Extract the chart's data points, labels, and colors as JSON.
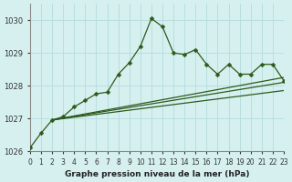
{
  "title": "Graphe pression niveau de la mer (hPa)",
  "bg_color": "#d6f0f0",
  "grid_color": "#b8dede",
  "line_color": "#2d5a1b",
  "xlim": [
    0,
    23
  ],
  "ylim": [
    1026,
    1030.5
  ],
  "yticks": [
    1026,
    1027,
    1028,
    1029,
    1030
  ],
  "xtick_labels": [
    "0",
    "1",
    "2",
    "3",
    "4",
    "5",
    "6",
    "7",
    "8",
    "9",
    "10",
    "11",
    "12",
    "13",
    "14",
    "15",
    "16",
    "17",
    "18",
    "19",
    "20",
    "21",
    "22",
    "23"
  ],
  "main_x": [
    0,
    1,
    2,
    3,
    4,
    5,
    6,
    7,
    8,
    9,
    10,
    11,
    12,
    13,
    14,
    15,
    16,
    17,
    18,
    19,
    20,
    21,
    22,
    23
  ],
  "main_y": [
    1026.1,
    1026.55,
    1026.95,
    1027.05,
    1027.35,
    1027.55,
    1027.75,
    1027.8,
    1028.35,
    1028.7,
    1029.2,
    1030.05,
    1029.8,
    1029.0,
    1028.95,
    1029.1,
    1028.65,
    1028.35,
    1028.65,
    1028.35,
    1028.35,
    1028.65,
    1028.65,
    1028.15
  ],
  "trend1_x": [
    2,
    23
  ],
  "trend1_y": [
    1026.95,
    1028.25
  ],
  "trend2_x": [
    2,
    23
  ],
  "trend2_y": [
    1026.95,
    1028.1
  ],
  "trend3_x": [
    2,
    23
  ],
  "trend3_y": [
    1026.95,
    1027.85
  ]
}
